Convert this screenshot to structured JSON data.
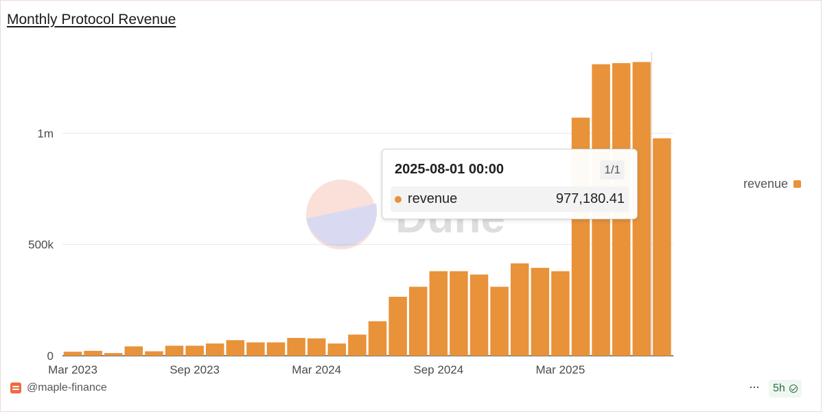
{
  "chart_data": {
    "type": "bar",
    "title": "Monthly Protocol Revenue",
    "x": [
      "2023-03-01",
      "2023-04-01",
      "2023-05-01",
      "2023-06-01",
      "2023-07-01",
      "2023-08-01",
      "2023-09-01",
      "2023-10-01",
      "2023-11-01",
      "2023-12-01",
      "2024-01-01",
      "2024-02-01",
      "2024-03-01",
      "2024-04-01",
      "2024-05-01",
      "2024-06-01",
      "2024-07-01",
      "2024-08-01",
      "2024-09-01",
      "2024-10-01",
      "2024-11-01",
      "2024-12-01",
      "2025-01-01",
      "2025-02-01",
      "2025-03-01",
      "2025-04-01",
      "2025-05-01",
      "2025-06-01",
      "2025-07-01",
      "2025-08-01"
    ],
    "x_tick_labels": [
      "Mar 2023",
      "Sep 2023",
      "Mar 2024",
      "Sep 2024",
      "Mar 2025"
    ],
    "y_tick_labels": [
      "0",
      "500k",
      "1m"
    ],
    "series": [
      {
        "name": "revenue",
        "values": [
          18000,
          22000,
          12000,
          42000,
          20000,
          45000,
          45000,
          55000,
          70000,
          60000,
          60000,
          80000,
          78000,
          55000,
          95000,
          155000,
          265000,
          310000,
          380000,
          380000,
          365000,
          310000,
          415000,
          395000,
          380000,
          1070000,
          1310000,
          1315000,
          1320000,
          977180.41
        ]
      }
    ],
    "ylim": [
      0,
      1380000
    ],
    "grid": true,
    "legend": "right",
    "colors": {
      "revenue": "#e8923a"
    }
  },
  "tooltip": {
    "date": "2025-08-01 00:00",
    "count": "1/1",
    "series_name": "revenue",
    "value": "977,180.41"
  },
  "watermark": "Dune",
  "footer": {
    "owner": "@maple-finance",
    "more": "···",
    "age": "5h"
  }
}
